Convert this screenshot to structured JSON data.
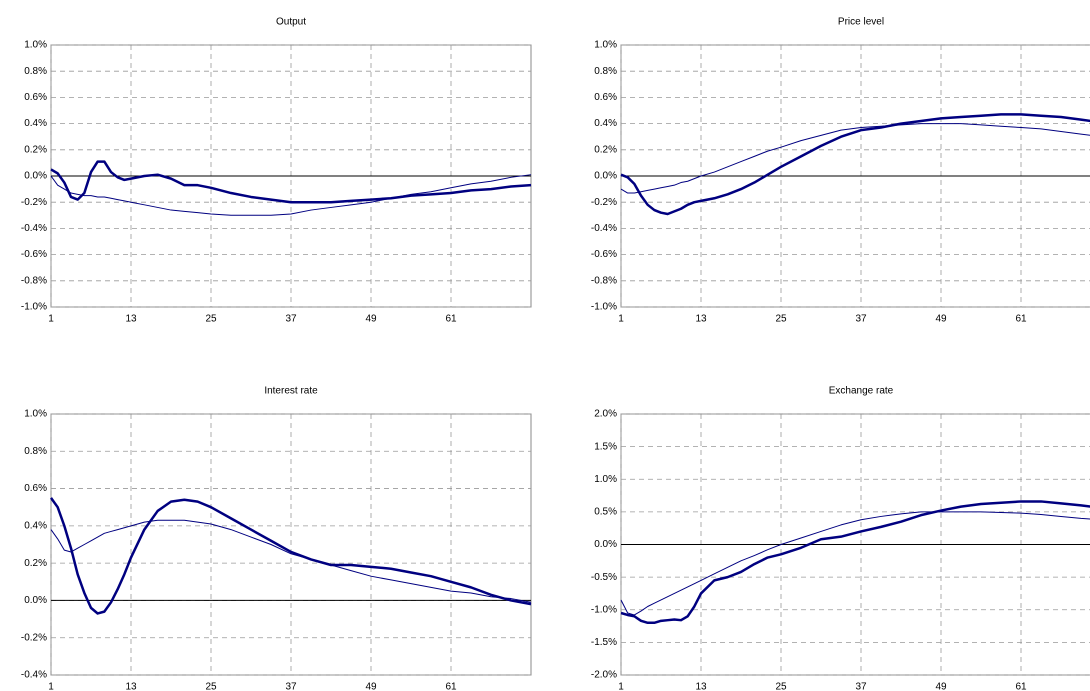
{
  "chart_data": [
    {
      "type": "line",
      "title": "Output",
      "x": [
        1,
        2,
        3,
        4,
        5,
        6,
        7,
        8,
        9,
        10,
        11,
        12,
        13,
        15,
        17,
        19,
        21,
        23,
        25,
        28,
        31,
        34,
        37,
        40,
        43,
        46,
        49,
        52,
        55,
        58,
        61,
        64,
        67,
        70,
        73
      ],
      "xlim": [
        1,
        73
      ],
      "xticks": [
        1,
        13,
        25,
        37,
        49,
        61
      ],
      "ylim": [
        -1,
        1
      ],
      "yticks": [
        {
          "value": -1,
          "label": "-1.0%"
        },
        {
          "value": -0.8,
          "label": "-0.8%"
        },
        {
          "value": -0.6,
          "label": "-0.6%"
        },
        {
          "value": -0.4,
          "label": "-0.4%"
        },
        {
          "value": -0.2,
          "label": "-0.2%"
        },
        {
          "value": 0,
          "label": "0.0%"
        },
        {
          "value": 0.2,
          "label": "0.2%"
        },
        {
          "value": 0.4,
          "label": "0.4%"
        },
        {
          "value": 0.6,
          "label": "0.6%"
        },
        {
          "value": 0.8,
          "label": "0.8%"
        },
        {
          "value": 1,
          "label": "1.0%"
        }
      ],
      "grid": true,
      "series": [
        {
          "color": "#000080",
          "values": [
            0.05,
            0.02,
            -0.05,
            -0.16,
            -0.18,
            -0.13,
            0.03,
            0.11,
            0.11,
            0.03,
            -0.01,
            -0.03,
            -0.02,
            0,
            0.01,
            -0.02,
            -0.07,
            -0.07,
            -0.09,
            -0.13,
            -0.16,
            -0.18,
            -0.2,
            -0.2,
            -0.2,
            -0.19,
            -0.18,
            -0.17,
            -0.15,
            -0.14,
            -0.13,
            -0.11,
            -0.1,
            -0.08,
            -0.07
          ]
        },
        {
          "color": "#000080",
          "values": [
            0,
            -0.07,
            -0.1,
            -0.13,
            -0.14,
            -0.15,
            -0.15,
            -0.16,
            -0.16,
            -0.17,
            -0.18,
            -0.19,
            -0.2,
            -0.22,
            -0.24,
            -0.26,
            -0.27,
            -0.28,
            -0.29,
            -0.3,
            -0.3,
            -0.3,
            -0.29,
            -0.26,
            -0.24,
            -0.22,
            -0.2,
            -0.17,
            -0.14,
            -0.12,
            -0.09,
            -0.06,
            -0.04,
            -0.01,
            0.01
          ]
        }
      ]
    },
    {
      "type": "line",
      "title": "Price level",
      "x": [
        1,
        2,
        3,
        4,
        5,
        6,
        7,
        8,
        9,
        10,
        11,
        12,
        13,
        15,
        17,
        19,
        21,
        23,
        25,
        28,
        31,
        34,
        37,
        40,
        43,
        46,
        49,
        52,
        55,
        58,
        61,
        64,
        67,
        70,
        73
      ],
      "xlim": [
        1,
        73
      ],
      "xticks": [
        1,
        13,
        25,
        37,
        49,
        61
      ],
      "ylim": [
        -1,
        1
      ],
      "yticks": [
        {
          "value": -1,
          "label": "-1.0%"
        },
        {
          "value": -0.8,
          "label": "-0.8%"
        },
        {
          "value": -0.6,
          "label": "-0.6%"
        },
        {
          "value": -0.4,
          "label": "-0.4%"
        },
        {
          "value": -0.2,
          "label": "-0.2%"
        },
        {
          "value": 0,
          "label": "0.0%"
        },
        {
          "value": 0.2,
          "label": "0.2%"
        },
        {
          "value": 0.4,
          "label": "0.4%"
        },
        {
          "value": 0.6,
          "label": "0.6%"
        },
        {
          "value": 0.8,
          "label": "0.8%"
        },
        {
          "value": 1,
          "label": "1.0%"
        }
      ],
      "grid": true,
      "series": [
        {
          "color": "#000080",
          "values": [
            0.01,
            -0.01,
            -0.06,
            -0.15,
            -0.22,
            -0.26,
            -0.28,
            -0.29,
            -0.27,
            -0.25,
            -0.22,
            -0.2,
            -0.19,
            -0.17,
            -0.14,
            -0.1,
            -0.05,
            0.01,
            0.07,
            0.15,
            0.23,
            0.3,
            0.35,
            0.37,
            0.4,
            0.42,
            0.44,
            0.45,
            0.46,
            0.47,
            0.47,
            0.46,
            0.45,
            0.43,
            0.41
          ]
        },
        {
          "color": "#000080",
          "values": [
            -0.1,
            -0.13,
            -0.13,
            -0.12,
            -0.11,
            -0.1,
            -0.09,
            -0.08,
            -0.07,
            -0.05,
            -0.04,
            -0.02,
            0,
            0.03,
            0.07,
            0.11,
            0.15,
            0.19,
            0.22,
            0.27,
            0.31,
            0.35,
            0.37,
            0.38,
            0.39,
            0.4,
            0.4,
            0.4,
            0.39,
            0.38,
            0.37,
            0.36,
            0.34,
            0.32,
            0.3
          ]
        }
      ]
    },
    {
      "type": "line",
      "title": "Interest rate",
      "x": [
        1,
        2,
        3,
        4,
        5,
        6,
        7,
        8,
        9,
        10,
        11,
        12,
        13,
        15,
        17,
        19,
        21,
        23,
        25,
        28,
        31,
        34,
        37,
        40,
        43,
        46,
        49,
        52,
        55,
        58,
        61,
        64,
        67,
        70,
        73
      ],
      "xlim": [
        1,
        73
      ],
      "xticks": [
        1,
        13,
        25,
        37,
        49,
        61
      ],
      "ylim": [
        -0.4,
        1
      ],
      "yticks": [
        {
          "value": -0.4,
          "label": "-0.4%"
        },
        {
          "value": -0.2,
          "label": "-0.2%"
        },
        {
          "value": 0,
          "label": "0.0%"
        },
        {
          "value": 0.2,
          "label": "0.2%"
        },
        {
          "value": 0.4,
          "label": "0.4%"
        },
        {
          "value": 0.6,
          "label": "0.6%"
        },
        {
          "value": 0.8,
          "label": "0.8%"
        },
        {
          "value": 1,
          "label": "1.0%"
        }
      ],
      "grid": true,
      "series": [
        {
          "color": "#000080",
          "values": [
            0.55,
            0.5,
            0.4,
            0.28,
            0.14,
            0.04,
            -0.04,
            -0.07,
            -0.06,
            -0.01,
            0.06,
            0.14,
            0.23,
            0.38,
            0.48,
            0.53,
            0.54,
            0.53,
            0.5,
            0.44,
            0.38,
            0.32,
            0.26,
            0.22,
            0.19,
            0.19,
            0.18,
            0.17,
            0.15,
            0.13,
            0.1,
            0.07,
            0.03,
            0,
            -0.02
          ]
        },
        {
          "color": "#000080",
          "values": [
            0.38,
            0.33,
            0.27,
            0.26,
            0.28,
            0.3,
            0.32,
            0.34,
            0.36,
            0.37,
            0.38,
            0.39,
            0.4,
            0.42,
            0.43,
            0.43,
            0.43,
            0.42,
            0.41,
            0.38,
            0.34,
            0.3,
            0.25,
            0.22,
            0.19,
            0.16,
            0.13,
            0.11,
            0.09,
            0.07,
            0.05,
            0.04,
            0.02,
            0.01,
            -0.01
          ]
        }
      ]
    },
    {
      "type": "line",
      "title": "Exchange rate",
      "x": [
        1,
        2,
        3,
        4,
        5,
        6,
        7,
        8,
        9,
        10,
        11,
        12,
        13,
        15,
        17,
        19,
        21,
        23,
        25,
        28,
        31,
        34,
        37,
        40,
        43,
        46,
        49,
        52,
        55,
        58,
        61,
        64,
        67,
        70,
        73
      ],
      "xlim": [
        1,
        73
      ],
      "xticks": [
        1,
        13,
        25,
        37,
        49,
        61
      ],
      "ylim": [
        -2,
        2
      ],
      "yticks": [
        {
          "value": -2,
          "label": "-2.0%"
        },
        {
          "value": -1.5,
          "label": "-1.5%"
        },
        {
          "value": -1,
          "label": "-1.0%"
        },
        {
          "value": -0.5,
          "label": "-0.5%"
        },
        {
          "value": 0,
          "label": "0.0%"
        },
        {
          "value": 0.5,
          "label": "0.5%"
        },
        {
          "value": 1,
          "label": "1.0%"
        },
        {
          "value": 1.5,
          "label": "1.5%"
        },
        {
          "value": 2,
          "label": "2.0%"
        }
      ],
      "grid": true,
      "series": [
        {
          "color": "#000080",
          "values": [
            -1.05,
            -1.08,
            -1.1,
            -1.17,
            -1.2,
            -1.2,
            -1.17,
            -1.16,
            -1.15,
            -1.16,
            -1.1,
            -0.95,
            -0.75,
            -0.55,
            -0.5,
            -0.42,
            -0.3,
            -0.2,
            -0.15,
            -0.05,
            0.08,
            0.12,
            0.2,
            0.27,
            0.35,
            0.45,
            0.52,
            0.58,
            0.62,
            0.64,
            0.66,
            0.66,
            0.63,
            0.6,
            0.56
          ]
        },
        {
          "color": "#000080",
          "values": [
            -0.85,
            -1.05,
            -1.08,
            -1.02,
            -0.95,
            -0.9,
            -0.85,
            -0.8,
            -0.75,
            -0.7,
            -0.65,
            -0.6,
            -0.55,
            -0.45,
            -0.35,
            -0.25,
            -0.17,
            -0.08,
            0,
            0.1,
            0.2,
            0.3,
            0.38,
            0.43,
            0.47,
            0.5,
            0.5,
            0.5,
            0.5,
            0.49,
            0.48,
            0.46,
            0.43,
            0.4,
            0.38
          ]
        }
      ]
    }
  ]
}
